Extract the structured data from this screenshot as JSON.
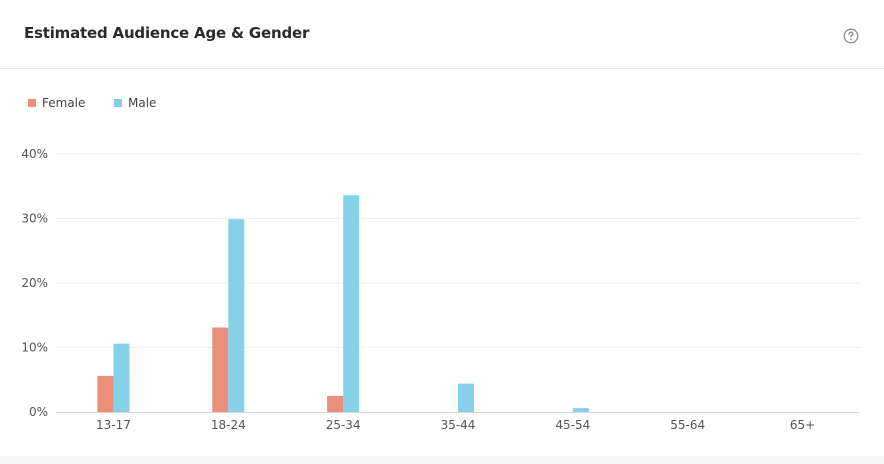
{
  "header": {
    "title": "Estimated Audience Age & Gender",
    "help_icon": "question-circle-icon"
  },
  "colors": {
    "female": "#ea8f7a",
    "male": "#86d1ea",
    "grid": "#eeeeee",
    "axis": "#d9d9d9"
  },
  "chart_data": {
    "type": "bar",
    "categories": [
      "13-17",
      "18-24",
      "25-34",
      "35-44",
      "45-54",
      "55-64",
      "65+"
    ],
    "series": [
      {
        "name": "Female",
        "values": [
          5.6,
          13.1,
          2.5,
          0,
          0,
          0,
          0
        ]
      },
      {
        "name": "Male",
        "values": [
          10.6,
          29.9,
          33.6,
          4.4,
          0.6,
          0,
          0
        ]
      }
    ],
    "yticks": [
      "0%",
      "10%",
      "20%",
      "30%",
      "40%"
    ],
    "ylim": [
      0,
      40
    ],
    "grid": true,
    "legend_position": "top-left"
  }
}
